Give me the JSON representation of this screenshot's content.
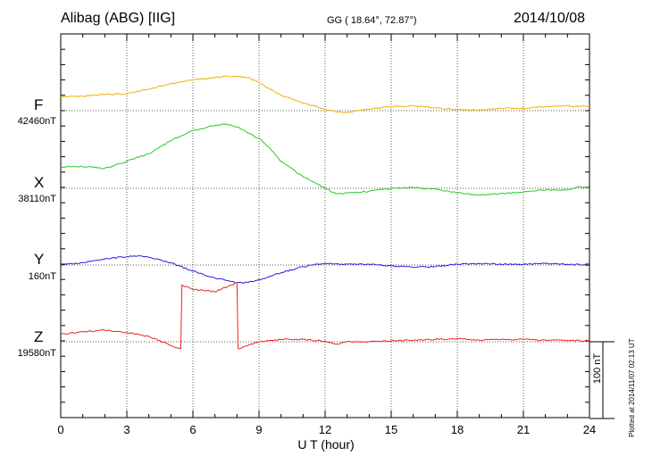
{
  "header": {
    "station": "Alibag (ABG)  [IIG]",
    "coords": "GG ( 18.64°,  72.87°)",
    "date": "2014/10/08"
  },
  "footer": {
    "xlabel": "U T (hour)",
    "plotted": "Plotted at 2014/11/07 02:13 UT",
    "scale": "100 nT"
  },
  "colors": {
    "F": "#f0b000",
    "X": "#22cc22",
    "Y": "#2222dd",
    "Z": "#ee2222",
    "axis": "#000000",
    "grid": "#555555"
  },
  "chart_data": {
    "type": "line",
    "title": "Alibag (ABG)  [IIG]",
    "xlabel": "U T (hour)",
    "ylabel": "",
    "xlim": [
      0,
      24
    ],
    "x_ticks": [
      0,
      3,
      6,
      9,
      12,
      15,
      18,
      21,
      24
    ],
    "grid": true,
    "scale_bar_nT": 100,
    "series": [
      {
        "name": "F",
        "baseline_label": "42460nT",
        "baseline_nT": 42460,
        "x": [
          0,
          1,
          2,
          3,
          4,
          5,
          6,
          7,
          7.5,
          8,
          8.5,
          9,
          9.5,
          10,
          11,
          12,
          12.5,
          13,
          14,
          15,
          16,
          17,
          18,
          19,
          20,
          21,
          22,
          23,
          23.5,
          24
        ],
        "values": [
          42478,
          42479,
          42481,
          42482,
          42488,
          42495,
          42500,
          42503,
          42505,
          42505,
          42503,
          42497,
          42488,
          42480,
          42470,
          42462,
          42458,
          42458,
          42462,
          42465,
          42466,
          42464,
          42461,
          42461,
          42463,
          42463,
          42465,
          42467,
          42465,
          42466
        ]
      },
      {
        "name": "X",
        "baseline_label": "38110nT",
        "baseline_nT": 38110,
        "x": [
          0,
          1,
          2,
          3,
          4,
          5,
          6,
          7,
          7.5,
          8,
          8.5,
          9,
          9.5,
          10,
          11,
          12,
          12.5,
          13,
          14,
          15,
          16,
          17,
          18,
          19,
          20,
          21,
          22,
          23,
          23.5,
          24
        ],
        "values": [
          38138,
          38138,
          38136,
          38145,
          38155,
          38172,
          38185,
          38192,
          38194,
          38190,
          38182,
          38175,
          38162,
          38145,
          38125,
          38110,
          38103,
          38104,
          38106,
          38110,
          38111,
          38109,
          38104,
          38101,
          38103,
          38105,
          38108,
          38108,
          38112,
          38110
        ]
      },
      {
        "name": "Y",
        "baseline_label": "160nT",
        "baseline_nT": 160,
        "x": [
          0,
          1,
          2,
          3,
          3.5,
          4,
          5,
          6,
          7,
          7.5,
          8,
          8.5,
          9,
          10,
          11,
          12,
          13,
          14,
          15,
          16,
          17,
          18,
          19,
          20,
          21,
          22,
          23,
          24
        ],
        "values": [
          160,
          163,
          168,
          171,
          172,
          170,
          163,
          152,
          143,
          140,
          137,
          137,
          141,
          150,
          158,
          162,
          161,
          161,
          159,
          157,
          158,
          161,
          162,
          161,
          161,
          162,
          161,
          160
        ]
      },
      {
        "name": "Z",
        "baseline_label": "19580nT",
        "baseline_nT": 19580,
        "x": [
          0,
          1,
          2,
          3,
          4,
          5,
          5.45,
          5.5,
          6,
          7,
          8,
          8.05,
          9,
          10,
          11,
          12,
          12.5,
          13,
          14,
          15,
          16,
          17,
          18,
          19,
          20,
          21,
          22,
          23,
          24
        ],
        "values": [
          19590,
          19593,
          19595,
          19592,
          19587,
          19575,
          19571,
          19654,
          19648,
          19645,
          19657,
          19571,
          19580,
          19583,
          19583,
          19581,
          19577,
          19580,
          19580,
          19581,
          19582,
          19583,
          19584,
          19582,
          19583,
          19583,
          19582,
          19582,
          19581
        ]
      }
    ]
  }
}
